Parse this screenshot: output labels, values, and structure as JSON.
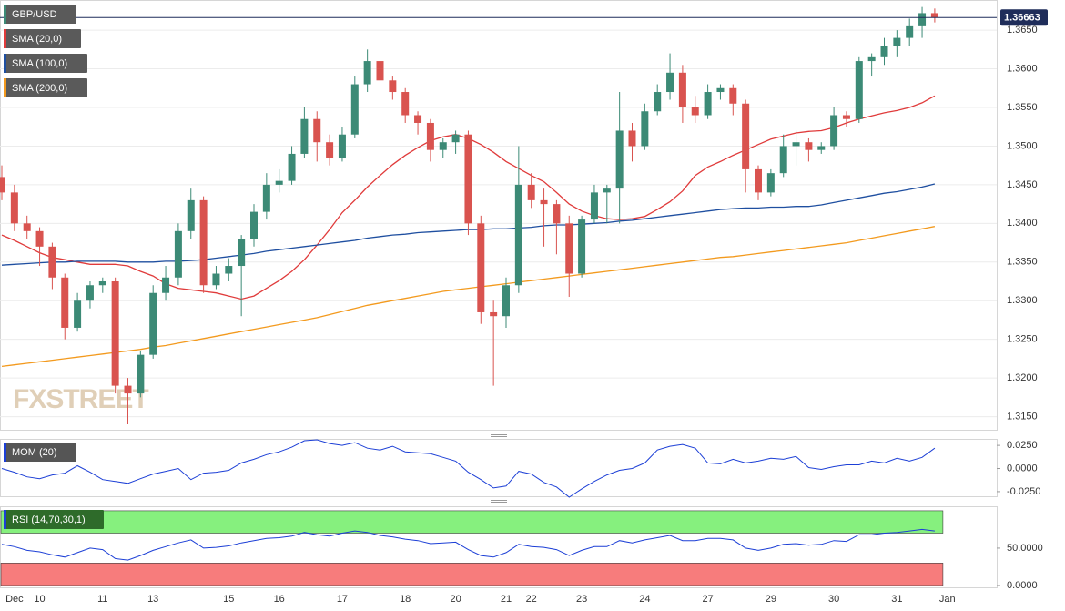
{
  "chart_data": [
    {
      "type": "candlestick",
      "title": "GBP/USD",
      "color": "#3c8a76",
      "up_color": "#3c8a76",
      "down_color": "#d9534f",
      "watermark": "FXSTREET",
      "grid": true,
      "last_price": 1.36663,
      "last_price_color": "#1f2d5a",
      "categories": [
        null,
        "Dec",
        null,
        "10",
        null,
        null,
        null,
        null,
        "11",
        null,
        null,
        null,
        "13",
        null,
        null,
        null,
        null,
        null,
        "15",
        null,
        null,
        null,
        "16",
        null,
        null,
        null,
        null,
        "17",
        null,
        null,
        null,
        null,
        "18",
        null,
        null,
        null,
        "20",
        null,
        null,
        null,
        "21",
        null,
        "22",
        null,
        null,
        null,
        "23",
        null,
        null,
        null,
        null,
        "24",
        null,
        null,
        null,
        null,
        "27",
        null,
        null,
        null,
        null,
        "29",
        null,
        null,
        null,
        null,
        "30",
        null,
        null,
        null,
        null,
        "31",
        null,
        null,
        null,
        "Jan"
      ],
      "open": [
        1.346,
        1.344,
        1.34,
        1.339,
        1.337,
        1.333,
        1.3265,
        1.33,
        1.332,
        1.3325,
        1.319,
        1.318,
        1.323,
        1.331,
        1.333,
        1.339,
        1.343,
        1.332,
        1.3335,
        1.3345,
        1.338,
        1.3415,
        1.345,
        1.3455,
        1.349,
        1.3535,
        1.3505,
        1.3485,
        1.3515,
        1.358,
        1.361,
        1.3585,
        1.357,
        1.354,
        1.353,
        1.3495,
        1.3505,
        1.3515,
        1.34,
        1.3285,
        1.328,
        1.332,
        1.345,
        1.343,
        1.3425,
        1.34,
        1.3335,
        1.3405,
        1.344,
        1.3445,
        1.352,
        1.35,
        1.3545,
        1.357,
        1.3595,
        1.355,
        1.354,
        1.357,
        1.3575,
        1.3555,
        1.347,
        1.344,
        1.3465,
        1.35,
        1.3505,
        1.3495,
        1.35,
        1.354,
        1.3535,
        1.361,
        1.3615,
        1.363,
        1.364,
        1.3655,
        1.3672,
        null
      ],
      "high": [
        1.3475,
        1.345,
        1.341,
        1.3395,
        1.3375,
        1.3335,
        1.331,
        1.3325,
        1.333,
        1.333,
        1.32,
        1.3235,
        1.332,
        1.3345,
        1.34,
        1.3445,
        1.3435,
        1.3345,
        1.3355,
        1.3385,
        1.3425,
        1.3465,
        1.347,
        1.35,
        1.355,
        1.3545,
        1.3515,
        1.3525,
        1.359,
        1.3625,
        1.3625,
        1.359,
        1.3575,
        1.3545,
        1.3535,
        1.351,
        1.352,
        1.352,
        1.341,
        1.33,
        1.333,
        1.35,
        1.3465,
        1.3445,
        1.343,
        1.341,
        1.341,
        1.345,
        1.345,
        1.357,
        1.353,
        1.3555,
        1.358,
        1.362,
        1.3605,
        1.3565,
        1.358,
        1.358,
        1.358,
        1.356,
        1.3475,
        1.347,
        1.3515,
        1.352,
        1.351,
        1.3505,
        1.355,
        1.3545,
        1.3615,
        1.362,
        1.364,
        1.365,
        1.3665,
        1.368,
        1.3678,
        null
      ],
      "low": [
        1.343,
        1.339,
        1.338,
        1.3345,
        1.3315,
        1.325,
        1.326,
        1.329,
        1.331,
        1.318,
        1.314,
        1.3175,
        1.3225,
        1.33,
        1.332,
        1.338,
        1.331,
        1.3315,
        1.3325,
        1.328,
        1.337,
        1.3405,
        1.344,
        1.345,
        1.3485,
        1.348,
        1.3475,
        1.348,
        1.351,
        1.357,
        1.3575,
        1.356,
        1.353,
        1.3515,
        1.348,
        1.3485,
        1.349,
        1.3385,
        1.327,
        1.319,
        1.3265,
        1.331,
        1.342,
        1.337,
        1.336,
        1.3305,
        1.333,
        1.34,
        1.34,
        1.34,
        1.348,
        1.3495,
        1.354,
        1.356,
        1.353,
        1.353,
        1.3535,
        1.356,
        1.354,
        1.344,
        1.343,
        1.3435,
        1.346,
        1.3475,
        1.348,
        1.349,
        1.3495,
        1.3525,
        1.353,
        1.359,
        1.3605,
        1.3615,
        1.363,
        1.364,
        1.366,
        null
      ],
      "close": [
        1.344,
        1.34,
        1.339,
        1.337,
        1.333,
        1.3265,
        1.33,
        1.332,
        1.3325,
        1.319,
        1.318,
        1.323,
        1.331,
        1.333,
        1.339,
        1.343,
        1.332,
        1.3335,
        1.3345,
        1.338,
        1.3415,
        1.345,
        1.3455,
        1.349,
        1.3535,
        1.3505,
        1.3485,
        1.3515,
        1.358,
        1.361,
        1.3585,
        1.357,
        1.354,
        1.353,
        1.3495,
        1.3505,
        1.3515,
        1.34,
        1.3285,
        1.328,
        1.332,
        1.345,
        1.343,
        1.3425,
        1.34,
        1.3335,
        1.3405,
        1.344,
        1.3445,
        1.352,
        1.35,
        1.3545,
        1.357,
        1.3595,
        1.355,
        1.354,
        1.357,
        1.3575,
        1.3555,
        1.347,
        1.344,
        1.3465,
        1.35,
        1.3505,
        1.3495,
        1.35,
        1.354,
        1.3535,
        1.361,
        1.3615,
        1.363,
        1.364,
        1.3655,
        1.3672,
        1.3666,
        null
      ],
      "series": [
        {
          "name": "SMA (20,0)",
          "color": "#e03b3b",
          "values": [
            1.3385,
            1.3378,
            1.337,
            1.3362,
            1.3356,
            1.3353,
            1.335,
            1.3347,
            1.3347,
            1.3347,
            1.3345,
            1.3338,
            1.3332,
            1.3322,
            1.3316,
            1.3314,
            1.3312,
            1.331,
            1.3306,
            1.3302,
            1.3306,
            1.3316,
            1.3326,
            1.3338,
            1.3353,
            1.3372,
            1.3392,
            1.3414,
            1.343,
            1.3447,
            1.3462,
            1.3476,
            1.3488,
            1.3498,
            1.3507,
            1.3512,
            1.3515,
            1.351,
            1.3502,
            1.3492,
            1.348,
            1.3471,
            1.3462,
            1.3454,
            1.344,
            1.3425,
            1.3416,
            1.341,
            1.3406,
            1.3405,
            1.3406,
            1.3409,
            1.3418,
            1.3428,
            1.3442,
            1.3462,
            1.3473,
            1.348,
            1.3488,
            1.3495,
            1.3502,
            1.3509,
            1.3513,
            1.3517,
            1.3519,
            1.352,
            1.3524,
            1.353,
            1.3535,
            1.3539,
            1.3543,
            1.3546,
            1.355,
            1.3556,
            1.3565,
            null
          ]
        },
        {
          "name": "SMA (100,0)",
          "color": "#1f4fa0",
          "values": [
            1.3346,
            1.3347,
            1.3348,
            1.3349,
            1.335,
            1.335,
            1.3351,
            1.3351,
            1.3351,
            1.3351,
            1.335,
            1.335,
            1.335,
            1.3351,
            1.3351,
            1.3352,
            1.3353,
            1.3355,
            1.3357,
            1.3359,
            1.3361,
            1.3364,
            1.3366,
            1.3368,
            1.337,
            1.3372,
            1.3374,
            1.3376,
            1.3378,
            1.3381,
            1.3383,
            1.3385,
            1.3386,
            1.3388,
            1.3389,
            1.339,
            1.3391,
            1.3392,
            1.3392,
            1.3393,
            1.3393,
            1.3394,
            1.3395,
            1.3397,
            1.3398,
            1.3398,
            1.3399,
            1.34,
            1.3401,
            1.3403,
            1.3404,
            1.3406,
            1.3408,
            1.341,
            1.3412,
            1.3414,
            1.3416,
            1.3418,
            1.3419,
            1.342,
            1.342,
            1.3421,
            1.3421,
            1.3422,
            1.3422,
            1.3424,
            1.3427,
            1.343,
            1.3433,
            1.3436,
            1.3439,
            1.3441,
            1.3444,
            1.3447,
            1.3451,
            null
          ]
        },
        {
          "name": "SMA (200,0)",
          "color": "#f39a1e",
          "values": [
            1.3215,
            1.3217,
            1.3219,
            1.3221,
            1.3223,
            1.3225,
            1.3227,
            1.3229,
            1.3231,
            1.3233,
            1.3235,
            1.3237,
            1.324,
            1.3242,
            1.3245,
            1.3248,
            1.3251,
            1.3254,
            1.3257,
            1.326,
            1.3263,
            1.3266,
            1.3269,
            1.3272,
            1.3275,
            1.3278,
            1.3282,
            1.3286,
            1.329,
            1.3294,
            1.3297,
            1.33,
            1.3303,
            1.3306,
            1.3309,
            1.3312,
            1.3314,
            1.3316,
            1.3318,
            1.332,
            1.3322,
            1.3324,
            1.3326,
            1.3328,
            1.333,
            1.3332,
            1.3334,
            1.3336,
            1.3338,
            1.334,
            1.3342,
            1.3344,
            1.3346,
            1.3348,
            1.335,
            1.3352,
            1.3354,
            1.3356,
            1.3357,
            1.3359,
            1.3361,
            1.3363,
            1.3365,
            1.3367,
            1.3369,
            1.3371,
            1.3373,
            1.3375,
            1.3378,
            1.3381,
            1.3384,
            1.3387,
            1.339,
            1.3393,
            1.3396,
            null
          ]
        }
      ],
      "ylim": [
        1.3133,
        1.3689
      ],
      "yticks": [
        {
          "value": 1.315,
          "label": "1.3150"
        },
        {
          "value": 1.32,
          "label": "1.3200"
        },
        {
          "value": 1.325,
          "label": "1.3250"
        },
        {
          "value": 1.33,
          "label": "1.3300"
        },
        {
          "value": 1.335,
          "label": "1.3350"
        },
        {
          "value": 1.34,
          "label": "1.3400"
        },
        {
          "value": 1.345,
          "label": "1.3450"
        },
        {
          "value": 1.35,
          "label": "1.3500"
        },
        {
          "value": 1.355,
          "label": "1.3550"
        },
        {
          "value": 1.36,
          "label": "1.3600"
        },
        {
          "value": 1.365,
          "label": "1.3650"
        }
      ]
    },
    {
      "type": "line",
      "grid": false,
      "label_color": "#555555",
      "series": [
        {
          "name": "MOM (20)",
          "color": "#1c3fd6",
          "values": [
            0.0,
            -0.004,
            -0.009,
            -0.011,
            -0.007,
            -0.005,
            0.003,
            -0.004,
            -0.012,
            -0.014,
            -0.016,
            -0.011,
            -0.006,
            -0.003,
            0.0,
            -0.012,
            -0.005,
            -0.004,
            -0.002,
            0.006,
            0.01,
            0.015,
            0.018,
            0.023,
            0.03,
            0.031,
            0.027,
            0.025,
            0.028,
            0.022,
            0.02,
            0.024,
            0.018,
            0.017,
            0.016,
            0.012,
            0.008,
            -0.004,
            -0.012,
            -0.021,
            -0.019,
            -0.003,
            -0.006,
            -0.015,
            -0.02,
            -0.031,
            -0.022,
            -0.014,
            -0.007,
            -0.002,
            0.0,
            0.006,
            0.02,
            0.024,
            0.026,
            0.022,
            0.006,
            0.005,
            0.01,
            0.006,
            0.008,
            0.011,
            0.01,
            0.013,
            0.001,
            -0.001,
            0.002,
            0.004,
            0.004,
            0.008,
            0.006,
            0.011,
            0.008,
            0.012,
            0.022,
            null
          ]
        }
      ],
      "ylim": [
        -0.03,
        0.032
      ],
      "yticks": [
        {
          "value": 0.025,
          "label": "0.0250"
        },
        {
          "value": 0,
          "label": "0.0000"
        },
        {
          "value": -0.025,
          "label": "-0.0250"
        }
      ]
    },
    {
      "type": "line",
      "grid": false,
      "label_color": "#2e6b2a",
      "bands": [
        {
          "from": 70,
          "to": 100,
          "color": "#86f07e"
        },
        {
          "from": 0,
          "to": 30,
          "color": "#f77c7c"
        }
      ],
      "series": [
        {
          "name": "RSI (14,70,30,1)",
          "color": "#1c3fd6",
          "values": [
            55,
            52,
            47,
            45,
            41,
            38,
            44,
            50,
            48,
            36,
            34,
            40,
            47,
            52,
            57,
            61,
            50,
            51,
            53,
            57,
            60,
            63,
            64,
            66,
            71,
            68,
            66,
            70,
            73,
            71,
            67,
            65,
            62,
            60,
            56,
            57,
            58,
            48,
            40,
            38,
            44,
            55,
            52,
            51,
            48,
            40,
            47,
            52,
            52,
            60,
            57,
            61,
            64,
            67,
            60,
            60,
            63,
            63,
            61,
            50,
            47,
            50,
            55,
            56,
            54,
            55,
            60,
            59,
            68,
            68,
            70,
            71,
            73,
            75,
            73,
            null
          ]
        }
      ],
      "ylim": [
        -2.5,
        106
      ],
      "yticks": [
        {
          "value": 50,
          "label": "50.0000"
        },
        {
          "value": 0,
          "label": "0.0000"
        }
      ]
    }
  ]
}
